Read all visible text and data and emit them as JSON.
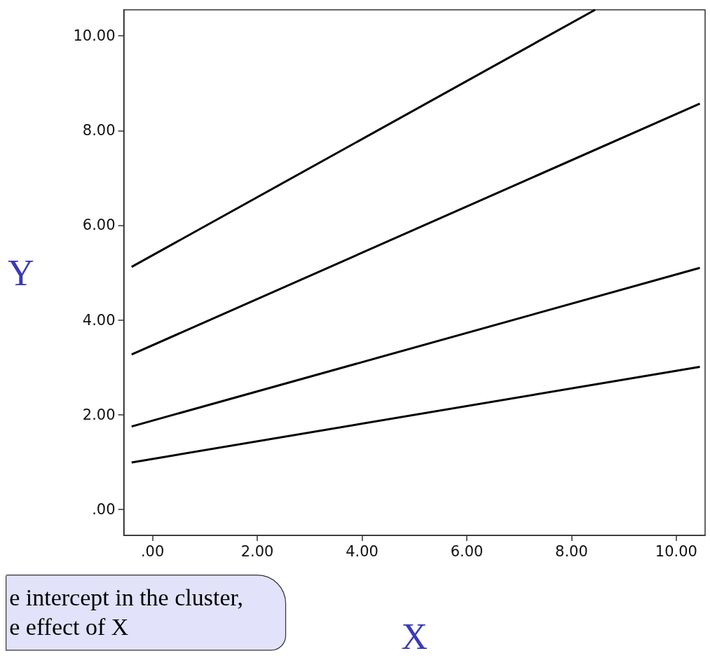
{
  "chart_data": {
    "type": "line",
    "xlabel": "X",
    "ylabel": "Y",
    "xlim": [
      -0.55,
      10.55
    ],
    "ylim": [
      -0.55,
      10.55
    ],
    "xticks": [
      {
        "value": 0,
        "label": ".00"
      },
      {
        "value": 2,
        "label": "2.00"
      },
      {
        "value": 4,
        "label": "4.00"
      },
      {
        "value": 6,
        "label": "6.00"
      },
      {
        "value": 8,
        "label": "8.00"
      },
      {
        "value": 10,
        "label": "10.00"
      }
    ],
    "yticks": [
      {
        "value": 0,
        "label": ".00"
      },
      {
        "value": 2,
        "label": "2.00"
      },
      {
        "value": 4,
        "label": "4.00"
      },
      {
        "value": 6,
        "label": "6.00"
      },
      {
        "value": 8,
        "label": "8.00"
      },
      {
        "value": 10,
        "label": "10.00"
      }
    ],
    "series": [
      {
        "color": "#000000",
        "x": [
          -0.4,
          8.45
        ],
        "values": [
          5.12,
          10.55
        ]
      },
      {
        "color": "#000000",
        "x": [
          -0.4,
          10.45
        ],
        "values": [
          3.27,
          8.57
        ]
      },
      {
        "color": "#000000",
        "x": [
          -0.4,
          10.45
        ],
        "values": [
          1.75,
          5.1
        ]
      },
      {
        "color": "#000000",
        "x": [
          -0.4,
          10.45
        ],
        "values": [
          0.99,
          3.01
        ]
      }
    ],
    "annotations": [
      "e intercept in the cluster,\ne effect of X"
    ],
    "grid": false,
    "marker": "none",
    "line_style": "solid"
  }
}
